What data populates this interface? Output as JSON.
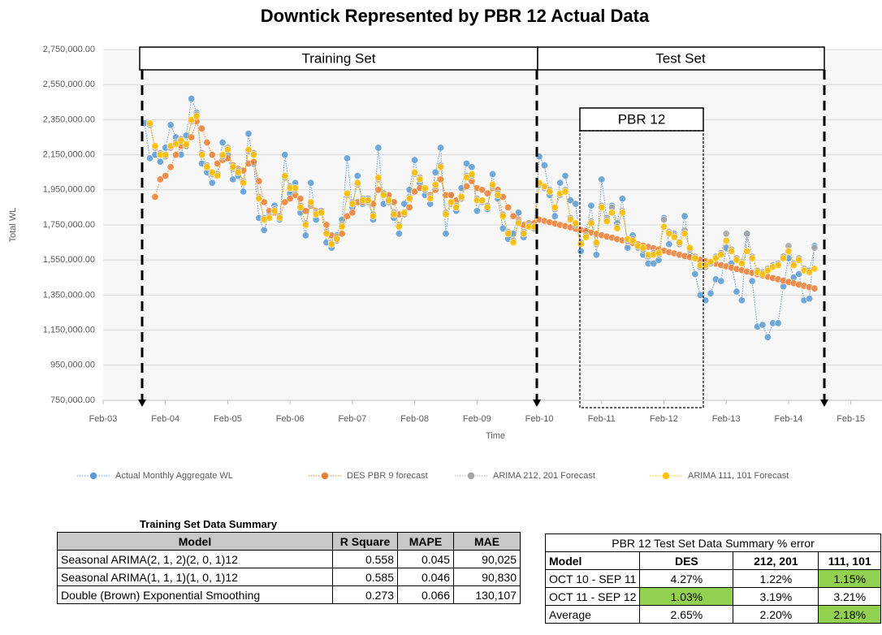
{
  "chart_data": {
    "type": "line",
    "title": "Downtick Represented by PBR 12 Actual Data",
    "x_label": "Time",
    "y_label": "Total WL",
    "annotations": [
      "Training Set",
      "Test Set",
      "PBR 12"
    ],
    "xlim": [
      "Feb-03",
      "Aug-15"
    ],
    "xticks": [
      "Feb-03",
      "Feb-04",
      "Feb-05",
      "Feb-06",
      "Feb-07",
      "Feb-08",
      "Feb-09",
      "Feb-10",
      "Feb-11",
      "Feb-12",
      "Feb-13",
      "Feb-14",
      "Feb-15"
    ],
    "ylim": [
      750000,
      2750000
    ],
    "yticks": [
      {
        "value": 750000,
        "label": "750,000.00"
      },
      {
        "value": 950000,
        "label": "950,000.00"
      },
      {
        "value": 1150000,
        "label": "1,150,000.00"
      },
      {
        "value": 1350000,
        "label": "1,350,000.00"
      },
      {
        "value": 1550000,
        "label": "1,550,000.00"
      },
      {
        "value": 1750000,
        "label": "1,750,000.00"
      },
      {
        "value": 1950000,
        "label": "1,950,000.00"
      },
      {
        "value": 2150000,
        "label": "2,150,000.00"
      },
      {
        "value": 2350000,
        "label": "2,350,000.00"
      },
      {
        "value": 2550000,
        "label": "2,550,000.00"
      },
      {
        "value": 2750000,
        "label": "2,750,000.00"
      }
    ],
    "grid": true,
    "x": [
      "Oct-03",
      "Nov-03",
      "Dec-03",
      "Jan-04",
      "Feb-04",
      "Mar-04",
      "Apr-04",
      "May-04",
      "Jun-04",
      "Jul-04",
      "Aug-04",
      "Sep-04",
      "Oct-04",
      "Nov-04",
      "Dec-04",
      "Jan-05",
      "Feb-05",
      "Mar-05",
      "Apr-05",
      "May-05",
      "Jun-05",
      "Jul-05",
      "Aug-05",
      "Sep-05",
      "Oct-05",
      "Nov-05",
      "Dec-05",
      "Jan-06",
      "Feb-06",
      "Mar-06",
      "Apr-06",
      "May-06",
      "Jun-06",
      "Jul-06",
      "Aug-06",
      "Sep-06",
      "Oct-06",
      "Nov-06",
      "Dec-06",
      "Jan-07",
      "Feb-07",
      "Mar-07",
      "Apr-07",
      "May-07",
      "Jun-07",
      "Jul-07",
      "Aug-07",
      "Sep-07",
      "Oct-07",
      "Nov-07",
      "Dec-07",
      "Jan-08",
      "Feb-08",
      "Mar-08",
      "Apr-08",
      "May-08",
      "Jun-08",
      "Jul-08",
      "Aug-08",
      "Sep-08",
      "Oct-08",
      "Nov-08",
      "Dec-08",
      "Jan-09",
      "Feb-09",
      "Mar-09",
      "Apr-09",
      "May-09",
      "Jun-09",
      "Jul-09",
      "Aug-09",
      "Sep-09",
      "Oct-09",
      "Nov-09",
      "Dec-09",
      "Jan-10",
      "Feb-10",
      "Mar-10",
      "Apr-10",
      "May-10",
      "Jun-10",
      "Jul-10",
      "Aug-10",
      "Sep-10",
      "Oct-10",
      "Nov-10",
      "Dec-10",
      "Jan-11",
      "Feb-11",
      "Mar-11",
      "Apr-11",
      "May-11",
      "Jun-11",
      "Jul-11",
      "Aug-11",
      "Sep-11",
      "Oct-11",
      "Nov-11",
      "Dec-11",
      "Jan-12",
      "Feb-12",
      "Mar-12",
      "Apr-12",
      "May-12",
      "Jun-12",
      "Jul-12",
      "Aug-12",
      "Sep-12",
      "Oct-12",
      "Nov-12",
      "Dec-12",
      "Jan-13",
      "Feb-13",
      "Mar-13",
      "Apr-13",
      "May-13",
      "Jun-13",
      "Jul-13",
      "Aug-13",
      "Sep-13",
      "Oct-13",
      "Nov-13",
      "Dec-13",
      "Jan-14",
      "Feb-14",
      "Mar-14",
      "Apr-14",
      "May-14",
      "Jun-14",
      "Jul-14"
    ],
    "series": [
      {
        "name": "Actual Monthly Aggregate WL",
        "color": "#5b9bd5",
        "values": [
          2330000,
          2130000,
          2150000,
          2110000,
          2190000,
          2320000,
          2250000,
          2150000,
          2260000,
          2470000,
          2390000,
          2100000,
          2050000,
          1990000,
          2040000,
          2220000,
          2150000,
          2010000,
          2030000,
          1940000,
          2270000,
          2100000,
          1790000,
          1720000,
          1810000,
          1860000,
          1780000,
          2150000,
          1930000,
          1990000,
          1820000,
          1690000,
          1990000,
          1780000,
          1830000,
          1650000,
          1620000,
          1690000,
          1780000,
          2130000,
          1850000,
          2030000,
          1870000,
          1900000,
          1780000,
          2190000,
          1870000,
          1900000,
          1790000,
          1700000,
          1870000,
          1950000,
          2120000,
          1990000,
          1920000,
          1870000,
          2050000,
          2190000,
          1700000,
          1920000,
          1830000,
          1960000,
          2100000,
          2080000,
          1830000,
          1890000,
          1840000,
          2040000,
          1900000,
          1730000,
          1670000,
          1700000,
          1820000,
          1680000,
          1760000,
          1730000,
          2140000,
          2090000,
          1920000,
          1800000,
          1990000,
          2030000,
          1890000,
          1870000,
          1600000,
          1720000,
          1860000,
          1580000,
          2010000,
          1790000,
          1860000,
          1760000,
          1900000,
          1620000,
          1690000,
          1620000,
          1580000,
          1530000,
          1530000,
          1550000,
          1790000,
          1640000,
          1700000,
          1650000,
          1800000,
          1580000,
          1470000,
          1350000,
          1320000,
          1360000,
          1440000,
          1430000,
          1620000,
          1530000,
          1370000,
          1320000,
          1700000,
          1430000,
          1170000,
          1180000,
          1110000,
          1190000,
          1190000,
          1400000,
          1560000,
          1450000,
          1470000,
          1320000,
          1330000,
          1630000
        ]
      },
      {
        "name": "DES PBR 9 forecast",
        "color": "#ed7d31",
        "values": [
          null,
          null,
          1910000,
          2010000,
          2030000,
          2080000,
          2150000,
          2200000,
          2200000,
          2250000,
          2340000,
          2300000,
          2220000,
          2150000,
          2100000,
          2120000,
          2130000,
          2090000,
          2070000,
          2060000,
          2100000,
          2110000,
          2000000,
          1880000,
          1830000,
          1820000,
          1800000,
          1880000,
          1900000,
          1920000,
          1900000,
          1830000,
          1860000,
          1830000,
          1820000,
          1750000,
          1690000,
          1680000,
          1700000,
          1800000,
          1820000,
          1880000,
          1880000,
          1890000,
          1870000,
          1950000,
          1930000,
          1920000,
          1880000,
          1810000,
          1810000,
          1850000,
          1940000,
          1960000,
          1950000,
          1920000,
          1950000,
          2010000,
          1920000,
          1920000,
          1890000,
          1910000,
          1970000,
          2000000,
          1960000,
          1950000,
          1930000,
          1960000,
          1950000,
          1910000,
          1850000,
          1800000,
          1780000,
          1750000,
          1760000,
          1760000,
          1780000,
          1773000,
          1765000,
          1758000,
          1750000,
          1743000,
          1736000,
          1728000,
          1721000,
          1714000,
          1706000,
          1699000,
          1691000,
          1684000,
          1677000,
          1669000,
          1662000,
          1654000,
          1647000,
          1640000,
          1632000,
          1625000,
          1617000,
          1610000,
          1603000,
          1595000,
          1588000,
          1580000,
          1573000,
          1566000,
          1558000,
          1551000,
          1543000,
          1536000,
          1529000,
          1521000,
          1514000,
          1506000,
          1499000,
          1492000,
          1484000,
          1477000,
          1469000,
          1462000,
          1455000,
          1447000,
          1440000,
          1432000,
          1425000,
          1418000,
          1410000,
          1403000,
          1395000,
          1388000
        ]
      },
      {
        "name": "ARIMA 212, 201 Forecast",
        "color": "#a5a5a5",
        "values": [
          null,
          2320000,
          2190000,
          2160000,
          2140000,
          2190000,
          2220000,
          2240000,
          2200000,
          2340000,
          2380000,
          2160000,
          2090000,
          2040000,
          2040000,
          2140000,
          2190000,
          2070000,
          2060000,
          2000000,
          2170000,
          2160000,
          1910000,
          1790000,
          1800000,
          1840000,
          1800000,
          2020000,
          1970000,
          1950000,
          1860000,
          1760000,
          1870000,
          1820000,
          1830000,
          1710000,
          1650000,
          1660000,
          1750000,
          1920000,
          1880000,
          1980000,
          1900000,
          1880000,
          1810000,
          2010000,
          1930000,
          1880000,
          1820000,
          1750000,
          1810000,
          1910000,
          2040000,
          2020000,
          1950000,
          1910000,
          1970000,
          2090000,
          1820000,
          1870000,
          1860000,
          1900000,
          2030000,
          2030000,
          1900000,
          1880000,
          1860000,
          1970000,
          1930000,
          1810000,
          1710000,
          1660000,
          1770000,
          1710000,
          1750000,
          1730000,
          1980000,
          1960000,
          1950000,
          1840000,
          1920000,
          1950000,
          1790000,
          1750000,
          1650000,
          1690000,
          1770000,
          1640000,
          1860000,
          1780000,
          1850000,
          1740000,
          1830000,
          1660000,
          1670000,
          1620000,
          1610000,
          1570000,
          1590000,
          1580000,
          1780000,
          1710000,
          1690000,
          1640000,
          1720000,
          1610000,
          1570000,
          1510000,
          1510000,
          1530000,
          1570000,
          1590000,
          1700000,
          1610000,
          1560000,
          1540000,
          1700000,
          1570000,
          1490000,
          1480000,
          1500000,
          1520000,
          1530000,
          1570000,
          1630000,
          1530000,
          1560000,
          1500000,
          1490000,
          1620000
        ]
      },
      {
        "name": "ARIMA 111, 101 Forecast",
        "color": "#ffc000",
        "values": [
          null,
          2330000,
          2200000,
          2150000,
          2150000,
          2200000,
          2210000,
          2230000,
          2210000,
          2350000,
          2370000,
          2150000,
          2080000,
          2050000,
          2030000,
          2150000,
          2180000,
          2080000,
          2050000,
          1990000,
          2180000,
          2150000,
          1900000,
          1780000,
          1790000,
          1830000,
          1790000,
          2030000,
          1960000,
          1960000,
          1850000,
          1750000,
          1880000,
          1810000,
          1820000,
          1700000,
          1640000,
          1670000,
          1740000,
          1930000,
          1870000,
          1990000,
          1890000,
          1890000,
          1800000,
          2020000,
          1920000,
          1890000,
          1810000,
          1740000,
          1820000,
          1900000,
          2050000,
          2010000,
          1960000,
          1900000,
          1980000,
          2080000,
          1810000,
          1880000,
          1850000,
          1910000,
          2020000,
          2040000,
          1890000,
          1890000,
          1850000,
          1980000,
          1920000,
          1800000,
          1700000,
          1650000,
          1760000,
          1700000,
          1740000,
          1740000,
          1990000,
          1970000,
          1940000,
          1850000,
          1930000,
          1940000,
          1780000,
          1760000,
          1640000,
          1680000,
          1760000,
          1650000,
          1850000,
          1770000,
          1820000,
          1730000,
          1820000,
          1670000,
          1660000,
          1630000,
          1620000,
          1580000,
          1580000,
          1590000,
          1740000,
          1700000,
          1680000,
          1650000,
          1700000,
          1620000,
          1560000,
          1520000,
          1520000,
          1540000,
          1560000,
          1580000,
          1660000,
          1600000,
          1550000,
          1530000,
          1600000,
          1560000,
          1480000,
          1470000,
          1490000,
          1510000,
          1520000,
          1560000,
          1600000,
          1520000,
          1550000,
          1490000,
          1480000,
          1500000
        ]
      }
    ]
  },
  "training_table": {
    "title": "Training Set Data Summary",
    "columns": [
      "Model",
      "R Square",
      "MAPE",
      "MAE"
    ],
    "rows": [
      [
        "Seasonal ARIMA(2, 1, 2)(2, 0, 1)12",
        "0.558",
        "0.045",
        "90,025"
      ],
      [
        "Seasonal ARIMA(1, 1, 1)(1, 0, 1)12",
        "0.585",
        "0.046",
        "90,830"
      ],
      [
        "Double (Brown) Exponential Smoothing",
        "0.273",
        "0.066",
        "130,107"
      ]
    ]
  },
  "test_table": {
    "title": "PBR 12 Test Set Data Summary % error",
    "columns": [
      "Model",
      "DES",
      "212, 201",
      "111, 101"
    ],
    "rows": [
      [
        "OCT 10 - SEP 11",
        "4.27%",
        "1.22%",
        "1.15%"
      ],
      [
        "OCT 11 - SEP 12",
        "1.03%",
        "3.19%",
        "3.21%"
      ],
      [
        "Average",
        "2.65%",
        "2.20%",
        "2.18%"
      ]
    ]
  }
}
